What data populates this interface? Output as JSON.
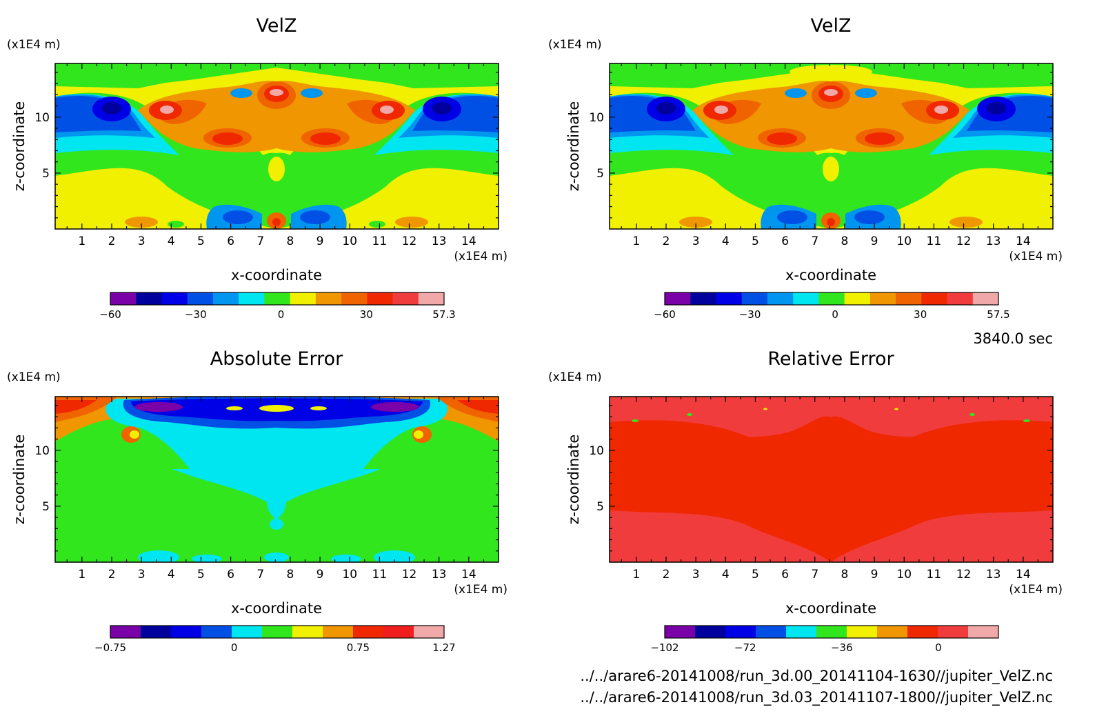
{
  "time_label": "3840.0 sec",
  "files": [
    "../../arare6-20141008/run_3d.00_20141104-1630//jupiter_VelZ.nc",
    "../../arare6-20141008/run_3d.03_20141107-1800//jupiter_VelZ.nc"
  ],
  "chart_data": [
    {
      "type": "heatmap",
      "title": "VelZ",
      "xlabel": "x-coordinate",
      "ylabel": "z-coordinate",
      "x_unit": "(x1E4 m)",
      "y_unit": "(x1E4 m)",
      "xlim": [
        0.1,
        15.0
      ],
      "ylim": [
        0.0,
        14.8
      ],
      "x_ticks": [
        "1",
        "2",
        "3",
        "4",
        "5",
        "6",
        "7",
        "8",
        "9",
        "10",
        "11",
        "12",
        "13",
        "14"
      ],
      "y_ticks": [
        "5",
        "10"
      ],
      "colorbar": {
        "colors": [
          "#7a00a8",
          "#00009c",
          "#0000e6",
          "#0050e6",
          "#0096f0",
          "#00e6f0",
          "#32e61e",
          "#f0f000",
          "#f09600",
          "#f06400",
          "#f02800",
          "#f03c3c",
          "#f0a8a8"
        ],
        "labels": [
          {
            "value": -60,
            "text": "−60"
          },
          {
            "value": -30,
            "text": "−30"
          },
          {
            "value": 0,
            "text": "0"
          },
          {
            "value": 30,
            "text": "30"
          },
          {
            "value": 57.3,
            "text": "57.3"
          }
        ]
      }
    },
    {
      "type": "heatmap",
      "title": "VelZ",
      "xlabel": "x-coordinate",
      "ylabel": "z-coordinate",
      "x_unit": "(x1E4 m)",
      "y_unit": "(x1E4 m)",
      "xlim": [
        0.1,
        15.0
      ],
      "ylim": [
        0.0,
        14.8
      ],
      "x_ticks": [
        "1",
        "2",
        "3",
        "4",
        "5",
        "6",
        "7",
        "8",
        "9",
        "10",
        "11",
        "12",
        "13",
        "14"
      ],
      "y_ticks": [
        "5",
        "10"
      ],
      "colorbar": {
        "colors": [
          "#7a00a8",
          "#00009c",
          "#0000e6",
          "#0050e6",
          "#0096f0",
          "#00e6f0",
          "#32e61e",
          "#f0f000",
          "#f09600",
          "#f06400",
          "#f02800",
          "#f03c3c",
          "#f0a8a8"
        ],
        "labels": [
          {
            "value": -60,
            "text": "−60"
          },
          {
            "value": -30,
            "text": "−30"
          },
          {
            "value": 0,
            "text": "0"
          },
          {
            "value": 30,
            "text": "30"
          },
          {
            "value": 57.5,
            "text": "57.5"
          }
        ]
      }
    },
    {
      "type": "heatmap",
      "title": "Absolute Error",
      "xlabel": "x-coordinate",
      "ylabel": "z-coordinate",
      "x_unit": "(x1E4 m)",
      "y_unit": "(x1E4 m)",
      "xlim": [
        0.1,
        15.0
      ],
      "ylim": [
        0.0,
        14.8
      ],
      "x_ticks": [
        "1",
        "2",
        "3",
        "4",
        "5",
        "6",
        "7",
        "8",
        "9",
        "10",
        "11",
        "12",
        "13",
        "14"
      ],
      "y_ticks": [
        "5",
        "10"
      ],
      "colorbar": {
        "colors": [
          "#7a00a8",
          "#00009c",
          "#0000e6",
          "#0050e6",
          "#00e6f0",
          "#32e61e",
          "#f0f000",
          "#f09600",
          "#f02800",
          "#f01e1e",
          "#f0a8a8"
        ],
        "labels": [
          {
            "value": -0.75,
            "text": "−0.75"
          },
          {
            "value": 0,
            "text": "0"
          },
          {
            "value": 0.75,
            "text": "0.75"
          },
          {
            "value": 1.27,
            "text": "1.27"
          }
        ]
      }
    },
    {
      "type": "heatmap",
      "title": "Relative Error",
      "xlabel": "x-coordinate",
      "ylabel": "z-coordinate",
      "x_unit": "(x1E4 m)",
      "y_unit": "(x1E4 m)",
      "xlim": [
        0.1,
        15.0
      ],
      "ylim": [
        0.0,
        14.8
      ],
      "x_ticks": [
        "1",
        "2",
        "3",
        "4",
        "5",
        "6",
        "7",
        "8",
        "9",
        "10",
        "11",
        "12",
        "13",
        "14"
      ],
      "y_ticks": [
        "5",
        "10"
      ],
      "colorbar": {
        "colors": [
          "#7a00a8",
          "#00009c",
          "#0000e6",
          "#0050e6",
          "#00e6f0",
          "#32e61e",
          "#f0f000",
          "#f09600",
          "#f02800",
          "#f03c3c",
          "#f0a8a8"
        ],
        "labels": [
          {
            "value": -102,
            "text": "−102"
          },
          {
            "value": -72,
            "text": "−72"
          },
          {
            "value": -36,
            "text": "−36"
          },
          {
            "value": 0,
            "text": "0"
          }
        ]
      }
    }
  ]
}
